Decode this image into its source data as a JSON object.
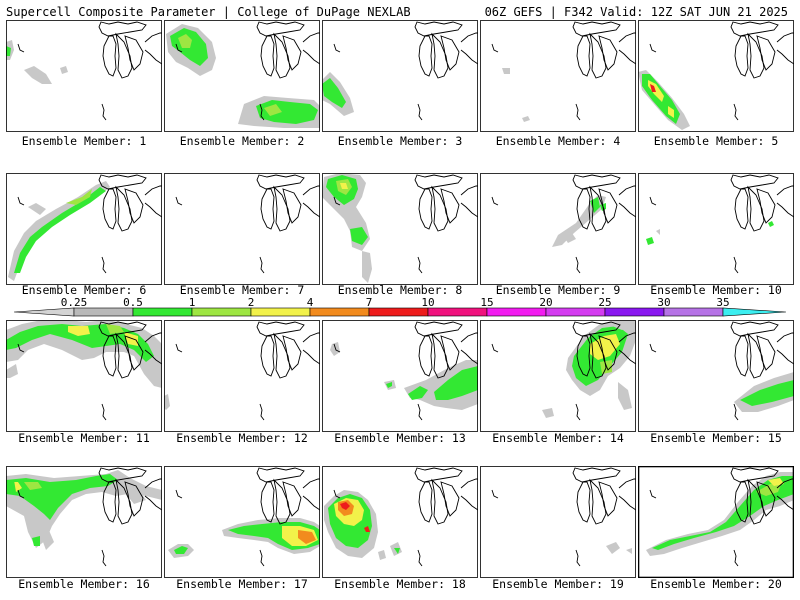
{
  "header": {
    "left": "Supercell Composite Parameter | College of DuPage NEXLAB",
    "right": "06Z GEFS | F342 Valid: 12Z SAT JUN 21 2025"
  },
  "members": [
    {
      "label": "Ensemble Member: 1"
    },
    {
      "label": "Ensemble Member: 2"
    },
    {
      "label": "Ensemble Member: 3"
    },
    {
      "label": "Ensemble Member: 4"
    },
    {
      "label": "Ensemble Member: 5"
    },
    {
      "label": "Ensemble Member: 6"
    },
    {
      "label": "Ensemble Member: 7"
    },
    {
      "label": "Ensemble Member: 8"
    },
    {
      "label": "Ensemble Member: 9"
    },
    {
      "label": "Ensemble Member: 10"
    },
    {
      "label": "Ensemble Member: 11"
    },
    {
      "label": "Ensemble Member: 12"
    },
    {
      "label": "Ensemble Member: 13"
    },
    {
      "label": "Ensemble Member: 14"
    },
    {
      "label": "Ensemble Member: 15"
    },
    {
      "label": "Ensemble Member: 16"
    },
    {
      "label": "Ensemble Member: 17"
    },
    {
      "label": "Ensemble Member: 18"
    },
    {
      "label": "Ensemble Member: 19"
    },
    {
      "label": "Ensemble Member: 20"
    }
  ],
  "colorbar": {
    "ticks": [
      "0.25",
      "0.5",
      "1",
      "2",
      "4",
      "7",
      "10",
      "15",
      "20",
      "25",
      "30",
      "35"
    ],
    "colors": [
      "#d4d4d4",
      "#b9b9b9",
      "#33e833",
      "#9ee642",
      "#f2f24a",
      "#f28b1e",
      "#ee1c1c",
      "#f0127e",
      "#f21cf0",
      "#d43cf0",
      "#8a18f0",
      "#b673e6",
      "#3ceef0"
    ]
  }
}
